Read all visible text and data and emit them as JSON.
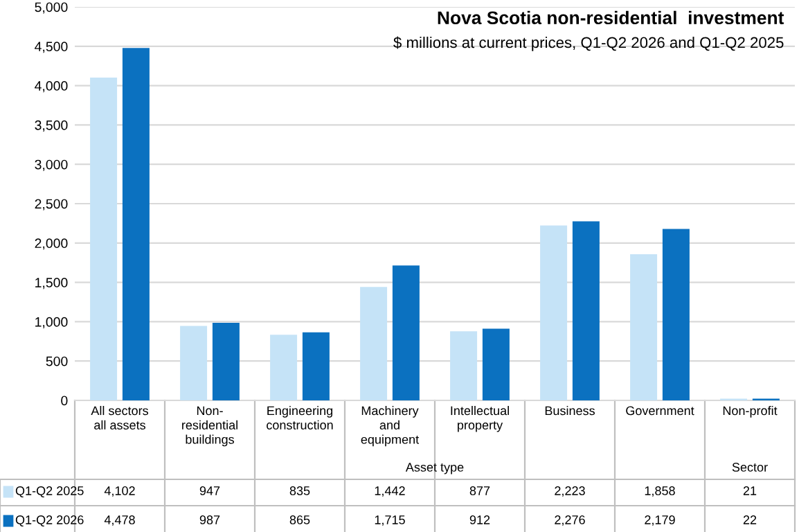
{
  "chart_data": {
    "type": "bar",
    "title": "Nova Scotia non-residential  investment",
    "subtitle": "$ millions at current prices, Q1-Q2 2026 and Q1-Q2 2025",
    "categories": [
      "All sectors\nall assets",
      "Non-\nresidential\nbuildings",
      "Engineering\nconstruction",
      "Machinery\nand\nequipment",
      "Intellectual\nproperty",
      "Business",
      "Government",
      "Non-profit"
    ],
    "series": [
      {
        "name": "Q1-Q2 2025",
        "color": "#c5e3f7",
        "values": [
          4102,
          947,
          835,
          1442,
          877,
          2223,
          1858,
          21
        ],
        "value_labels": [
          "4,102",
          "947",
          "835",
          "1,442",
          "877",
          "2,223",
          "1,858",
          "21"
        ]
      },
      {
        "name": "Q1-Q2 2026",
        "color": "#0b71c0",
        "values": [
          4478,
          987,
          865,
          1715,
          912,
          2276,
          2179,
          22
        ],
        "value_labels": [
          "4,478",
          "987",
          "865",
          "1,715",
          "912",
          "2,276",
          "2,179",
          "22"
        ]
      }
    ],
    "annotations": [
      "Asset type",
      "Sector"
    ],
    "legend": "bottom left",
    "ylim": [
      0,
      5000
    ],
    "yticks": [
      0,
      {
        "value": 500,
        "label": "500"
      },
      {
        "value": 1000,
        "label": "1,000"
      },
      {
        "value": 1500,
        "label": "1,500"
      },
      {
        "value": 2000,
        "label": "2,000"
      },
      {
        "value": 2500,
        "label": "2,500"
      },
      {
        "value": 3000,
        "label": "3,000"
      },
      {
        "value": 3500,
        "label": "3,500"
      },
      {
        "value": 4000,
        "label": "4,000"
      },
      {
        "value": 4500,
        "label": "4,500"
      },
      {
        "value": 5000,
        "label": "5,000"
      }
    ],
    "grid": "y"
  }
}
